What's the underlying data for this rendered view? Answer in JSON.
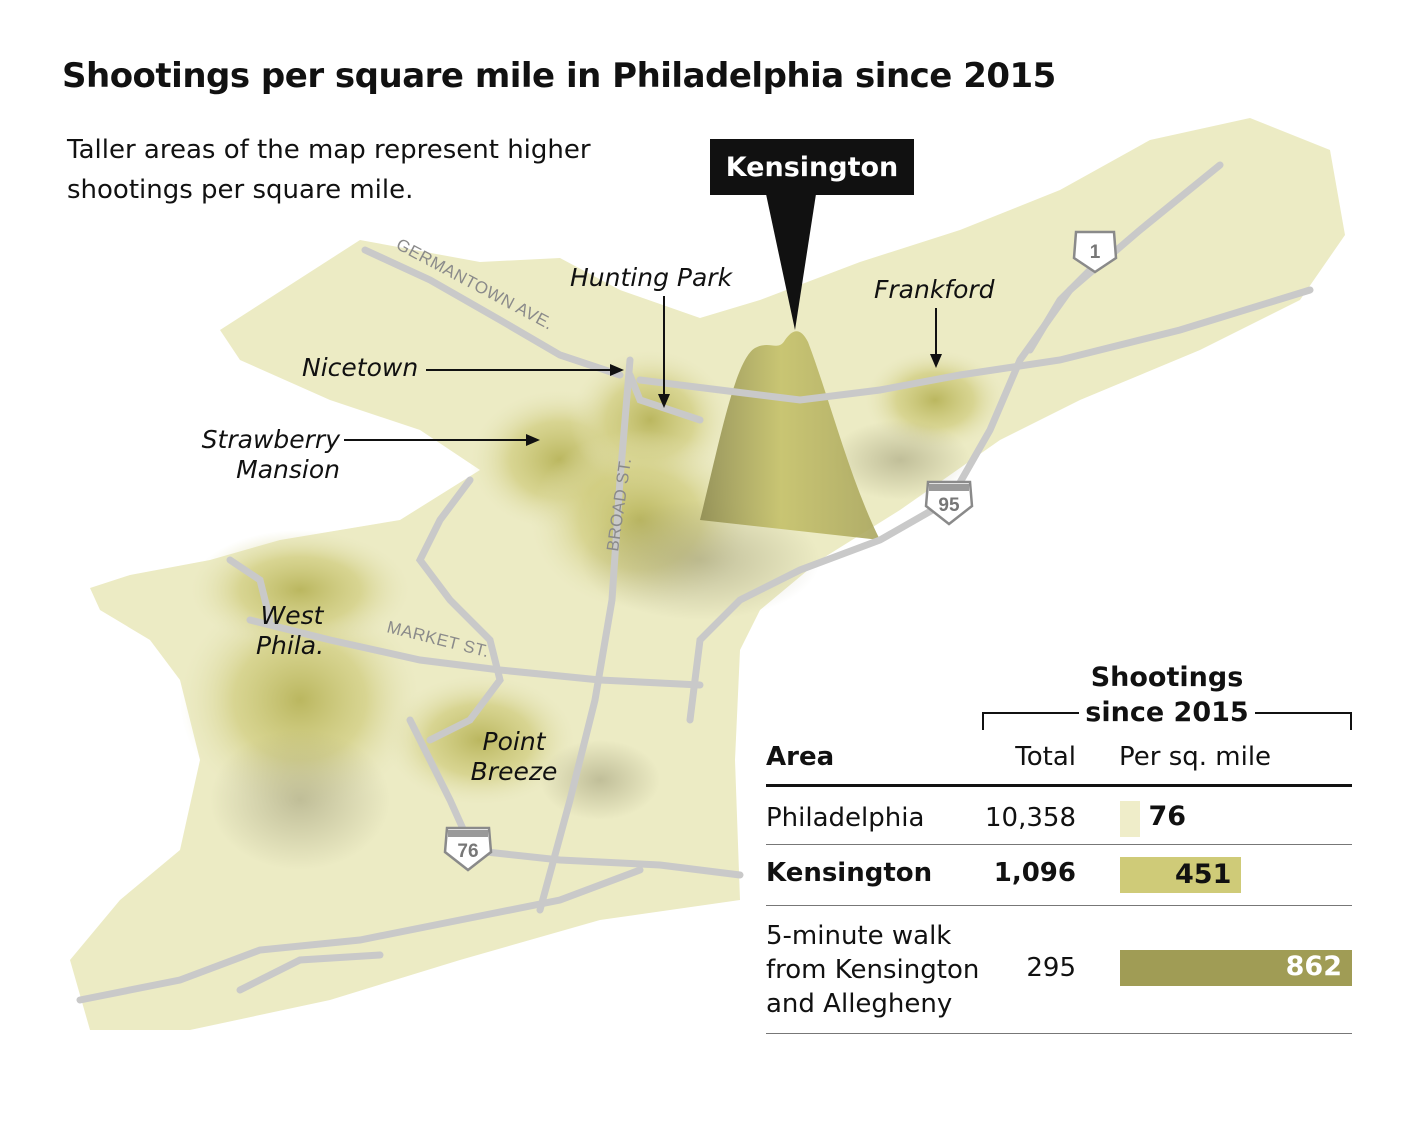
{
  "title": "Shootings per square mile in Philadelphia since 2015",
  "subtitle": "Taller areas of the map represent higher shootings per square mile.",
  "map": {
    "callout": "Kensington",
    "neighborhoods": {
      "hunting_park": "Hunting Park",
      "frankford": "Frankford",
      "nicetown": "Nicetown",
      "strawberry_1": "Strawberry",
      "strawberry_2": "Mansion",
      "west_1": "West",
      "west_2": "Phila.",
      "point_1": "Point",
      "point_2": "Breeze"
    },
    "roads": {
      "germantown": "GERMANTOWN AVE.",
      "broad": "BROAD ST.",
      "market": "MARKET ST."
    },
    "shields": {
      "us1": "1",
      "i95": "95",
      "i76": "76"
    },
    "colors": {
      "land": "#ecebc4",
      "peak": "#c8c46e",
      "road": "#c9c9c9"
    }
  },
  "table": {
    "group_title_1": "Shootings",
    "group_title_2": "since 2015",
    "headers": {
      "area": "Area",
      "total": "Total",
      "per_sq_mile": "Per sq. mile"
    },
    "rows": [
      {
        "area": "Philadelphia",
        "total": "10,358",
        "per_sq_mile": "76",
        "bold": false,
        "color": "#efedc9"
      },
      {
        "area": "Kensington",
        "total": "1,096",
        "per_sq_mile": "451",
        "bold": true,
        "color": "#cfcb78"
      },
      {
        "area_lines": [
          "5-minute walk",
          "from Kensington",
          "and Allegheny"
        ],
        "total": "295",
        "per_sq_mile": "862",
        "bold": false,
        "color": "#a09c55"
      }
    ]
  }
}
